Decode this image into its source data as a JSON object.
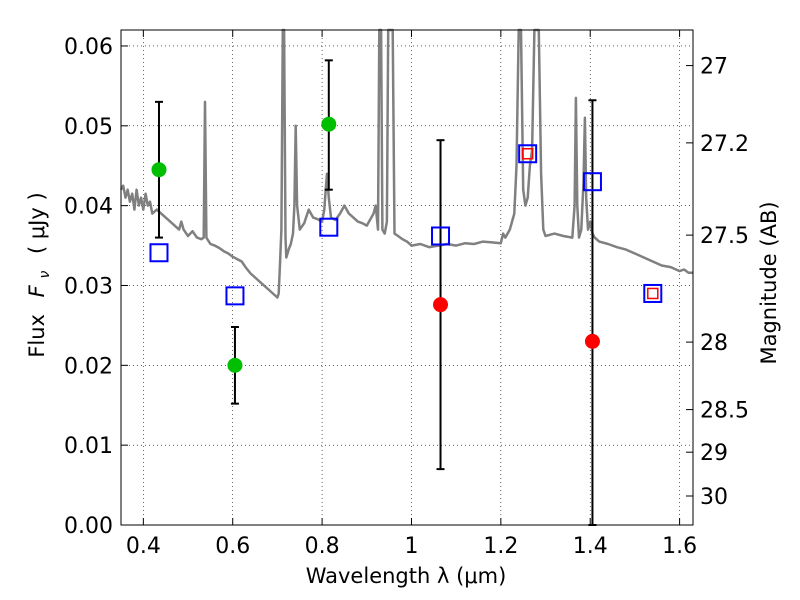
{
  "chart_data": {
    "type": "scatter",
    "xlabel": "Wavelength  λ (μm)",
    "ylabel_text": "Flux",
    "ylabel_symbol": "F",
    "ylabel_sub": "ν",
    "ylabel_unit": "( μJy )",
    "y2label": "Magnitude (AB)",
    "xlim": [
      0.35,
      1.63
    ],
    "ylim": [
      0.0,
      0.062
    ],
    "grid": true,
    "x_ticks": [
      {
        "value": 0.4,
        "label": "0.4"
      },
      {
        "value": 0.6,
        "label": "0.6"
      },
      {
        "value": 0.8,
        "label": "0.8"
      },
      {
        "value": 1.0,
        "label": "1"
      },
      {
        "value": 1.2,
        "label": "1.2"
      },
      {
        "value": 1.4,
        "label": "1.4"
      },
      {
        "value": 1.6,
        "label": "1.6"
      }
    ],
    "y_ticks": [
      {
        "value": 0.0,
        "label": "0.00"
      },
      {
        "value": 0.01,
        "label": "0.01"
      },
      {
        "value": 0.02,
        "label": "0.02"
      },
      {
        "value": 0.03,
        "label": "0.03"
      },
      {
        "value": 0.04,
        "label": "0.04"
      },
      {
        "value": 0.05,
        "label": "0.05"
      },
      {
        "value": 0.06,
        "label": "0.06"
      }
    ],
    "y2_ticks": [
      {
        "value": 27.0,
        "label": "27"
      },
      {
        "value": 27.2,
        "label": "27.2"
      },
      {
        "value": 27.5,
        "label": "27.5"
      },
      {
        "value": 28.0,
        "label": "28"
      },
      {
        "value": 28.5,
        "label": "28.5"
      },
      {
        "value": 29.0,
        "label": "29"
      },
      {
        "value": 30.0,
        "label": "30"
      }
    ],
    "colors": {
      "template": "#808080",
      "green": "#00bf00",
      "red": "#ff0000",
      "blue": "#0000ff",
      "errorbar": "#000000"
    },
    "series": [
      {
        "name": "template spectrum",
        "kind": "line",
        "color": "#808080",
        "points": [
          [
            0.35,
            0.042
          ],
          [
            0.355,
            0.0425
          ],
          [
            0.36,
            0.041
          ],
          [
            0.365,
            0.042
          ],
          [
            0.37,
            0.0405
          ],
          [
            0.375,
            0.0415
          ],
          [
            0.38,
            0.0395
          ],
          [
            0.385,
            0.042
          ],
          [
            0.39,
            0.04
          ],
          [
            0.395,
            0.041
          ],
          [
            0.4,
            0.0395
          ],
          [
            0.405,
            0.0415
          ],
          [
            0.41,
            0.04
          ],
          [
            0.415,
            0.0405
          ],
          [
            0.42,
            0.039
          ],
          [
            0.43,
            0.0395
          ],
          [
            0.44,
            0.039
          ],
          [
            0.45,
            0.0385
          ],
          [
            0.46,
            0.038
          ],
          [
            0.47,
            0.0375
          ],
          [
            0.48,
            0.037
          ],
          [
            0.485,
            0.038
          ],
          [
            0.49,
            0.037
          ],
          [
            0.5,
            0.0362
          ],
          [
            0.51,
            0.0368
          ],
          [
            0.52,
            0.036
          ],
          [
            0.53,
            0.0358
          ],
          [
            0.535,
            0.036
          ],
          [
            0.538,
            0.053
          ],
          [
            0.541,
            0.036
          ],
          [
            0.55,
            0.0352
          ],
          [
            0.56,
            0.035
          ],
          [
            0.57,
            0.0347
          ],
          [
            0.58,
            0.0343
          ],
          [
            0.59,
            0.034
          ],
          [
            0.6,
            0.0336
          ],
          [
            0.61,
            0.0333
          ],
          [
            0.62,
            0.033
          ],
          [
            0.63,
            0.0322
          ],
          [
            0.64,
            0.0315
          ],
          [
            0.65,
            0.031
          ],
          [
            0.66,
            0.0305
          ],
          [
            0.67,
            0.03
          ],
          [
            0.68,
            0.0295
          ],
          [
            0.69,
            0.029
          ],
          [
            0.7,
            0.0285
          ],
          [
            0.703,
            0.029
          ],
          [
            0.706,
            0.033
          ],
          [
            0.709,
            0.037
          ],
          [
            0.712,
            0.062
          ],
          [
            0.715,
            0.062
          ],
          [
            0.718,
            0.036
          ],
          [
            0.72,
            0.0335
          ],
          [
            0.725,
            0.0345
          ],
          [
            0.73,
            0.0352
          ],
          [
            0.735,
            0.0365
          ],
          [
            0.738,
            0.04
          ],
          [
            0.741,
            0.05
          ],
          [
            0.744,
            0.04
          ],
          [
            0.75,
            0.037
          ],
          [
            0.76,
            0.0378
          ],
          [
            0.77,
            0.0395
          ],
          [
            0.78,
            0.0385
          ],
          [
            0.79,
            0.0383
          ],
          [
            0.8,
            0.038
          ],
          [
            0.805,
            0.0395
          ],
          [
            0.808,
            0.042
          ],
          [
            0.811,
            0.044
          ],
          [
            0.815,
            0.041
          ],
          [
            0.82,
            0.0385
          ],
          [
            0.83,
            0.0382
          ],
          [
            0.84,
            0.039
          ],
          [
            0.85,
            0.04
          ],
          [
            0.86,
            0.039
          ],
          [
            0.87,
            0.0385
          ],
          [
            0.88,
            0.038
          ],
          [
            0.89,
            0.0378
          ],
          [
            0.9,
            0.0375
          ],
          [
            0.905,
            0.038
          ],
          [
            0.91,
            0.0385
          ],
          [
            0.915,
            0.039
          ],
          [
            0.92,
            0.04
          ],
          [
            0.925,
            0.037
          ],
          [
            0.928,
            0.062
          ],
          [
            0.932,
            0.062
          ],
          [
            0.935,
            0.037
          ],
          [
            0.94,
            0.0365
          ],
          [
            0.945,
            0.038
          ],
          [
            0.948,
            0.062
          ],
          [
            0.952,
            0.062
          ],
          [
            0.955,
            0.062
          ],
          [
            0.958,
            0.062
          ],
          [
            0.962,
            0.0365
          ],
          [
            0.97,
            0.0362
          ],
          [
            0.98,
            0.0358
          ],
          [
            0.99,
            0.0355
          ],
          [
            1.0,
            0.035
          ],
          [
            1.02,
            0.0352
          ],
          [
            1.04,
            0.0348
          ],
          [
            1.06,
            0.035
          ],
          [
            1.08,
            0.0352
          ],
          [
            1.1,
            0.035
          ],
          [
            1.12,
            0.0353
          ],
          [
            1.14,
            0.0352
          ],
          [
            1.16,
            0.0355
          ],
          [
            1.18,
            0.0354
          ],
          [
            1.2,
            0.0353
          ],
          [
            1.205,
            0.0365
          ],
          [
            1.21,
            0.036
          ],
          [
            1.22,
            0.037
          ],
          [
            1.23,
            0.039
          ],
          [
            1.235,
            0.045
          ],
          [
            1.24,
            0.062
          ],
          [
            1.245,
            0.062
          ],
          [
            1.25,
            0.042
          ],
          [
            1.255,
            0.04
          ],
          [
            1.26,
            0.041
          ],
          [
            1.265,
            0.045
          ],
          [
            1.27,
            0.047
          ],
          [
            1.275,
            0.062
          ],
          [
            1.28,
            0.062
          ],
          [
            1.285,
            0.062
          ],
          [
            1.29,
            0.044
          ],
          [
            1.295,
            0.037
          ],
          [
            1.3,
            0.0362
          ],
          [
            1.32,
            0.0365
          ],
          [
            1.34,
            0.0362
          ],
          [
            1.36,
            0.036
          ],
          [
            1.365,
            0.04
          ],
          [
            1.368,
            0.0535
          ],
          [
            1.371,
            0.04
          ],
          [
            1.375,
            0.036
          ],
          [
            1.38,
            0.037
          ],
          [
            1.385,
            0.043
          ],
          [
            1.388,
            0.051
          ],
          [
            1.391,
            0.041
          ],
          [
            1.395,
            0.037
          ],
          [
            1.4,
            0.038
          ],
          [
            1.405,
            0.0365
          ],
          [
            1.41,
            0.036
          ],
          [
            1.42,
            0.0355
          ],
          [
            1.44,
            0.0352
          ],
          [
            1.46,
            0.0348
          ],
          [
            1.48,
            0.0345
          ],
          [
            1.5,
            0.034
          ],
          [
            1.52,
            0.0335
          ],
          [
            1.54,
            0.033
          ],
          [
            1.56,
            0.0325
          ],
          [
            1.58,
            0.0323
          ],
          [
            1.6,
            0.0318
          ],
          [
            1.61,
            0.032
          ],
          [
            1.62,
            0.0316
          ],
          [
            1.63,
            0.0316
          ]
        ]
      },
      {
        "name": "green detections",
        "kind": "points-errorbar",
        "color": "#00bf00",
        "points": [
          {
            "x": 0.435,
            "y": 0.0445,
            "ylo": 0.036,
            "yhi": 0.053
          },
          {
            "x": 0.605,
            "y": 0.02,
            "ylo": 0.0152,
            "yhi": 0.0248
          },
          {
            "x": 0.815,
            "y": 0.0502,
            "ylo": 0.042,
            "yhi": 0.0582
          }
        ]
      },
      {
        "name": "red detections",
        "kind": "points-errorbar",
        "color": "#ff0000",
        "points": [
          {
            "x": 1.065,
            "y": 0.0276,
            "ylo": 0.007,
            "yhi": 0.0482
          },
          {
            "x": 1.405,
            "y": 0.023,
            "ylo": 0.0,
            "yhi": 0.0532
          }
        ]
      },
      {
        "name": "model bandpass fluxes",
        "kind": "open-squares",
        "color": "#0000ff",
        "points": [
          {
            "x": 0.435,
            "y": 0.0341
          },
          {
            "x": 0.605,
            "y": 0.0287
          },
          {
            "x": 0.815,
            "y": 0.0373
          },
          {
            "x": 1.065,
            "y": 0.0362
          },
          {
            "x": 1.26,
            "y": 0.0465
          },
          {
            "x": 1.405,
            "y": 0.043
          },
          {
            "x": 1.54,
            "y": 0.029
          }
        ]
      },
      {
        "name": "red open squares",
        "kind": "open-squares-small",
        "color": "#ff0000",
        "points": [
          {
            "x": 1.26,
            "y": 0.0465
          },
          {
            "x": 1.54,
            "y": 0.029
          }
        ]
      }
    ]
  }
}
